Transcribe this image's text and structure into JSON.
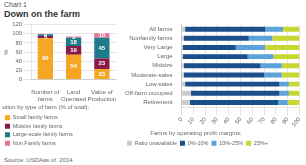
{
  "title": "Chart 1",
  "subtitle": "Down on the farm",
  "source": "Source: USDAas of  2014",
  "chart_data": [
    {
      "type": "bar",
      "stacked": true,
      "ylabel": "%",
      "categories": [
        "Number of\nfarms",
        "Land\nOperated",
        "Value of\nProduction"
      ],
      "series": [
        {
          "name": "Small family farms",
          "color": "#F5A623",
          "values": [
            90,
            54,
            23
          ],
          "value_labels": [
            "90",
            "54",
            "23"
          ]
        },
        {
          "name": "Midsize family farms",
          "color": "#8B1A4A",
          "values": [
            5,
            19,
            23
          ],
          "value_labels": [
            "5",
            "19",
            "23"
          ]
        },
        {
          "name": "Large-scale family farms",
          "color": "#1E7B8C",
          "values": [
            4,
            18,
            45
          ],
          "value_labels": [
            "4",
            "18",
            "45"
          ]
        },
        {
          "name": "Non Family farms",
          "color": "#E8739A",
          "values": [
            1,
            3,
            10
          ],
          "value_labels": [
            null,
            "3",
            "10"
          ]
        }
      ],
      "ylim": [
        0,
        120
      ],
      "yticks": [
        0,
        20,
        40,
        60,
        80,
        100,
        120
      ],
      "grid": true,
      "data_labels": true,
      "legend": "bottom",
      "legend_title": "Distribution by type of farm (% of total):"
    },
    {
      "type": "bar",
      "stacked": true,
      "orientation": "horizontal",
      "categories": [
        "All farms",
        "Nonfamily farms",
        "Very Large",
        "Large",
        "Midsize",
        "Moderate-sales",
        "Low-sales",
        "Off-farm occupied",
        "Retirement"
      ],
      "series": [
        {
          "name": "Ratio unavailable",
          "color": "#CCCCCC",
          "values": [
            3,
            2,
            1,
            1,
            2,
            2,
            3,
            8,
            7
          ]
        },
        {
          "name": "0%-10%",
          "color": "#1A4F8A",
          "values": [
            68,
            55,
            45,
            55,
            65,
            68,
            80,
            75,
            75
          ]
        },
        {
          "name": "10%-25%",
          "color": "#5BA3D9",
          "values": [
            15,
            20,
            25,
            22,
            18,
            15,
            8,
            8,
            8
          ]
        },
        {
          "name": "25%+",
          "color": "#C8D832",
          "values": [
            14,
            23,
            29,
            22,
            15,
            15,
            9,
            9,
            10
          ]
        }
      ],
      "xlim": [
        0,
        100
      ],
      "xticks": [
        0,
        10,
        20,
        30,
        40,
        50,
        60,
        70,
        80,
        90,
        100
      ],
      "grid": true,
      "legend": "bottom",
      "legend_title": "Farms by operating profit margins:"
    }
  ]
}
